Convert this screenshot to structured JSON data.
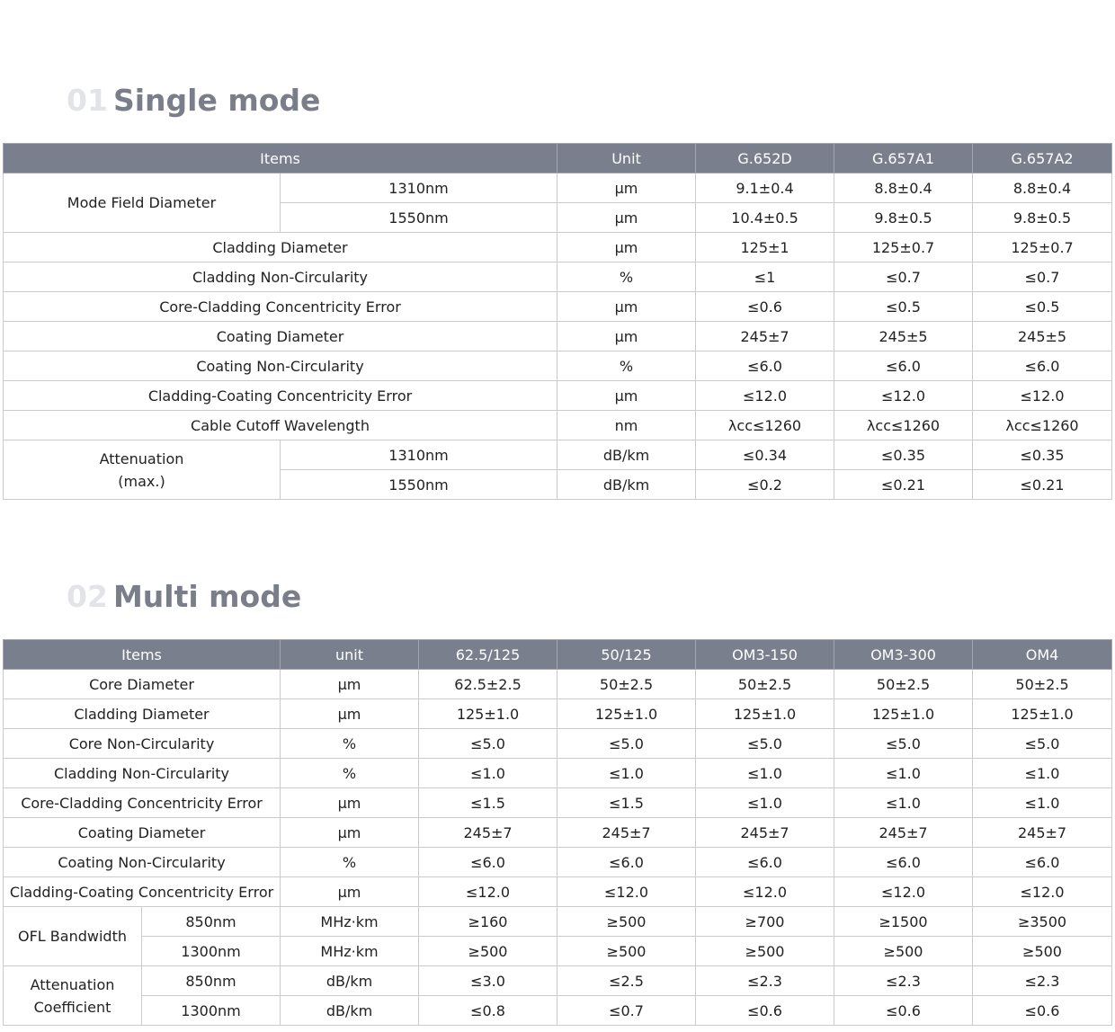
{
  "single_mode": {
    "number": "01",
    "title": "Single mode",
    "headers": [
      "Items",
      "Unit",
      "G.652D",
      "G.657A1",
      "G.657A2"
    ],
    "mfd": {
      "label": "Mode Field Diameter",
      "rows": [
        {
          "sub": "1310nm",
          "unit": "μm",
          "vals": [
            "9.1±0.4",
            "8.8±0.4",
            "8.8±0.4"
          ]
        },
        {
          "sub": "1550nm",
          "unit": "μm",
          "vals": [
            "10.4±0.5",
            "9.8±0.5",
            "9.8±0.5"
          ]
        }
      ]
    },
    "rows": [
      {
        "label": "Cladding Diameter",
        "unit": "μm",
        "vals": [
          "125±1",
          "125±0.7",
          "125±0.7"
        ]
      },
      {
        "label": "Cladding Non-Circularity",
        "unit": "%",
        "vals": [
          "≤1",
          "≤0.7",
          "≤0.7"
        ]
      },
      {
        "label": "Core-Cladding Concentricity Error",
        "unit": "μm",
        "vals": [
          "≤0.6",
          "≤0.5",
          "≤0.5"
        ]
      },
      {
        "label": "Coating Diameter",
        "unit": "μm",
        "vals": [
          "245±7",
          "245±5",
          "245±5"
        ]
      },
      {
        "label": "Coating Non-Circularity",
        "unit": "%",
        "vals": [
          "≤6.0",
          "≤6.0",
          "≤6.0"
        ]
      },
      {
        "label": "Cladding-Coating Concentricity Error",
        "unit": "μm",
        "vals": [
          "≤12.0",
          "≤12.0",
          "≤12.0"
        ]
      },
      {
        "label": "Cable Cutoff Wavelength",
        "unit": "nm",
        "vals": [
          "λcc≤1260",
          "λcc≤1260",
          "λcc≤1260"
        ]
      }
    ],
    "attenuation": {
      "label_1": "Attenuation",
      "label_2": "(max.)",
      "rows": [
        {
          "sub": "1310nm",
          "unit": "dB/km",
          "vals": [
            "≤0.34",
            "≤0.35",
            "≤0.35"
          ]
        },
        {
          "sub": "1550nm",
          "unit": "dB/km",
          "vals": [
            "≤0.2",
            "≤0.21",
            "≤0.21"
          ]
        }
      ]
    }
  },
  "multi_mode": {
    "number": "02",
    "title": "Multi mode",
    "headers": [
      "Items",
      "unit",
      "62.5/125",
      "50/125",
      "OM3-150",
      "OM3-300",
      "OM4"
    ],
    "rows": [
      {
        "label": "Core Diameter",
        "unit": "μm",
        "vals": [
          "62.5±2.5",
          "50±2.5",
          "50±2.5",
          "50±2.5",
          "50±2.5"
        ]
      },
      {
        "label": "Cladding Diameter",
        "unit": "μm",
        "vals": [
          "125±1.0",
          "125±1.0",
          "125±1.0",
          "125±1.0",
          "125±1.0"
        ]
      },
      {
        "label": "Core Non-Circularity",
        "unit": "%",
        "vals": [
          "≤5.0",
          "≤5.0",
          "≤5.0",
          "≤5.0",
          "≤5.0"
        ]
      },
      {
        "label": "Cladding Non-Circularity",
        "unit": "%",
        "vals": [
          "≤1.0",
          "≤1.0",
          "≤1.0",
          "≤1.0",
          "≤1.0"
        ]
      },
      {
        "label": "Core-Cladding Concentricity Error",
        "unit": "μm",
        "vals": [
          "≤1.5",
          "≤1.5",
          "≤1.0",
          "≤1.0",
          "≤1.0"
        ]
      },
      {
        "label": "Coating Diameter",
        "unit": "μm",
        "vals": [
          "245±7",
          "245±7",
          "245±7",
          "245±7",
          "245±7"
        ]
      },
      {
        "label": "Coating Non-Circularity",
        "unit": "%",
        "vals": [
          "≤6.0",
          "≤6.0",
          "≤6.0",
          "≤6.0",
          "≤6.0"
        ]
      },
      {
        "label": "Cladding-Coating Concentricity Error",
        "unit": "μm",
        "vals": [
          "≤12.0",
          "≤12.0",
          "≤12.0",
          "≤12.0",
          "≤12.0"
        ]
      }
    ],
    "bandwidth": {
      "label": "OFL Bandwidth",
      "rows": [
        {
          "sub": "850nm",
          "unit": "MHz·km",
          "vals": [
            "≥160",
            "≥500",
            "≥700",
            "≥1500",
            "≥3500"
          ]
        },
        {
          "sub": "1300nm",
          "unit": "MHz·km",
          "vals": [
            "≥500",
            "≥500",
            "≥500",
            "≥500",
            "≥500"
          ]
        }
      ]
    },
    "attenuation": {
      "label_1": "Attenuation",
      "label_2": "Coefficient",
      "rows": [
        {
          "sub": "850nm",
          "unit": "dB/km",
          "vals": [
            "≤3.0",
            "≤2.5",
            "≤2.3",
            "≤2.3",
            "≤2.3"
          ]
        },
        {
          "sub": "1300nm",
          "unit": "dB/km",
          "vals": [
            "≤0.8",
            "≤0.7",
            "≤0.6",
            "≤0.6",
            "≤0.6"
          ]
        }
      ]
    }
  }
}
